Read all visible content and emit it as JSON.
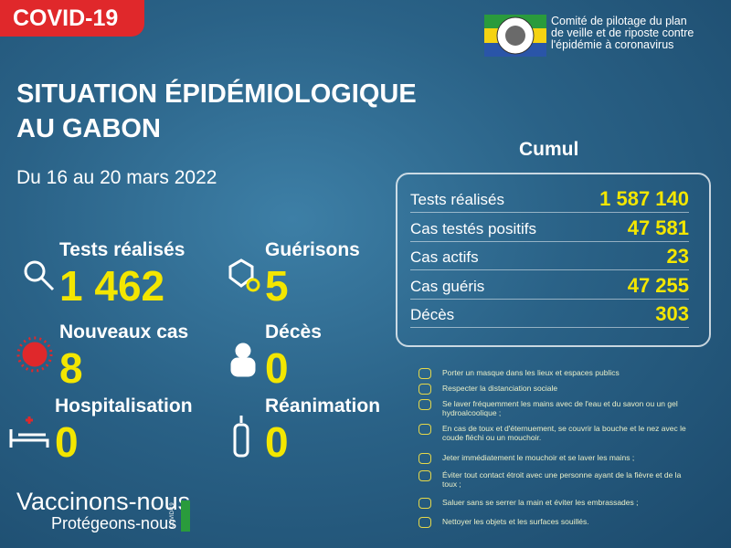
{
  "header": {
    "badge": "COVID-19",
    "org": [
      "Comité de pilotage du plan",
      "de veille et de riposte contre",
      "l'épidémie à coronavirus"
    ]
  },
  "title": [
    "SITUATION ÉPIDÉMIOLOGIQUE",
    "AU GABON"
  ],
  "period": "Du 16 au 20 mars 2022",
  "stats": [
    {
      "label": "Tests réalisés",
      "value": "1 462"
    },
    {
      "label": "Guérisons",
      "value": "5"
    },
    {
      "label": "Nouveaux cas",
      "value": "8"
    },
    {
      "label": "Décès",
      "value": "0"
    },
    {
      "label": "Hospitalisation",
      "value": "0"
    },
    {
      "label": "Réanimation",
      "value": "0"
    }
  ],
  "cumul": {
    "title": "Cumul",
    "rows": [
      [
        "Tests réalisés",
        "1 587 140"
      ],
      [
        "Cas testés positifs",
        "47 581"
      ],
      [
        "Cas actifs",
        "23"
      ],
      [
        "Cas guéris",
        "47 255"
      ],
      [
        "Décès",
        "303"
      ]
    ]
  },
  "prevention": [
    "Porter un masque dans les lieux et espaces publics",
    "Respecter la distanciation sociale",
    "Se laver fréquemment les mains avec de l'eau et du savon ou un gel hydroalcoolique ;",
    "En cas de toux et d'éternuement, se couvrir la bouche et le nez avec le coude fléchi ou un mouchoir.",
    "Jeter immédiatement le mouchoir et se laver les mains ;",
    "Éviter tout contact étroit avec une personne ayant de la fièvre et de la toux ;",
    "Saluer sans se serrer la main et éviter les embrassades ;",
    "Nettoyer les objets et les surfaces souillés."
  ],
  "footer": {
    "line1": "Vaccinons-nous",
    "line2": "Protégeons-nous",
    "tag": "COVID-19"
  }
}
